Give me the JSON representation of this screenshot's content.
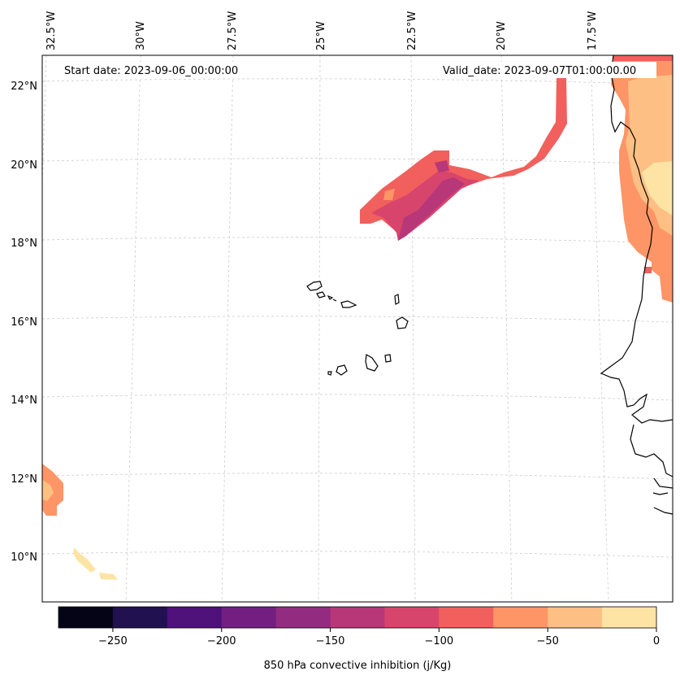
{
  "map": {
    "start_date_label": "Start date: 2023-09-06_00:00:00",
    "valid_date_label": "Valid_date: 2023-09-07T01:00:00.00",
    "lon_labels": [
      "32.5°W",
      "30°W",
      "27.5°W",
      "25°W",
      "22.5°W",
      "20°W",
      "17.5°W"
    ],
    "lat_labels": [
      "22°N",
      "20°N",
      "18°N",
      "16°N",
      "14°N",
      "12°N",
      "10°N"
    ],
    "gridlines": "dashed light gray",
    "coastline_color": "#000000"
  },
  "colorbar": {
    "label": "850 hPa convective inhibition (j/Kg)",
    "tick_labels": [
      "−250",
      "−200",
      "−150",
      "−100",
      "−50",
      "0"
    ],
    "range": [
      -275,
      0
    ],
    "colors": [
      "#050417",
      "#221150",
      "#4f127b",
      "#721f81",
      "#932b80",
      "#b73779",
      "#d8456c",
      "#f1605d",
      "#fd9567",
      "#febf84",
      "#fde4a4"
    ]
  },
  "chart_data": {
    "type": "heatmap",
    "variable": "850 hPa convective inhibition (j/Kg)",
    "units": "j/Kg",
    "levels": [
      -275,
      -250,
      -225,
      -200,
      -175,
      -150,
      -125,
      -100,
      -75,
      -50,
      -25,
      0
    ],
    "regions": [
      {
        "area": "Band NW of Cape Verde (~19-21°N, 22-18.5°W)",
        "min_value": -175,
        "max_value": -75
      },
      {
        "area": "West African coast, Mauritania (~17-22°N)",
        "min_value": -75,
        "max_value": 0
      },
      {
        "area": "Open Atlantic SW (~10-12.5°N, 33-31.5°W)",
        "min_value": -75,
        "max_value": 0
      }
    ]
  }
}
